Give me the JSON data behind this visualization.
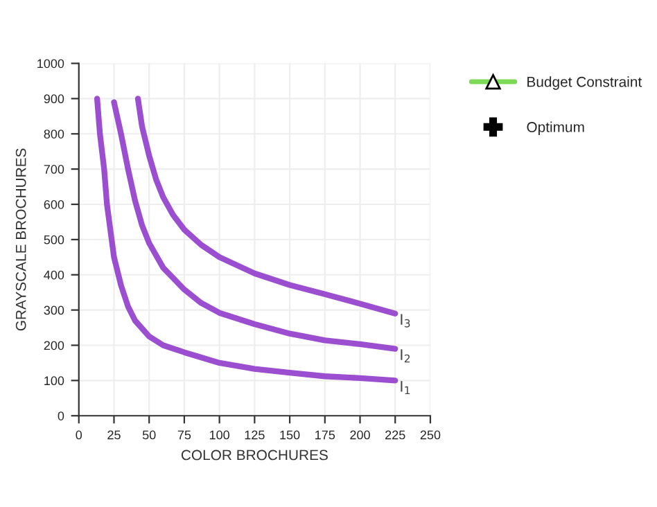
{
  "chart_data": {
    "type": "line",
    "xlabel": "COLOR BROCHURES",
    "ylabel": "GRAYSCALE BROCHURES",
    "xlim": [
      0,
      250
    ],
    "xticks": [
      0,
      25,
      50,
      75,
      100,
      125,
      150,
      175,
      200,
      225,
      250
    ],
    "ylim": [
      0,
      1000
    ],
    "yticks": [
      0,
      100,
      200,
      300,
      400,
      500,
      600,
      700,
      800,
      900,
      1000
    ],
    "grid": true,
    "legend": "right",
    "series": [
      {
        "name": "I$_{1}$",
        "color": "#9b4fd0",
        "marker": "none",
        "x": [
          13,
          15,
          18,
          20,
          25,
          30,
          35,
          40,
          50,
          60,
          75,
          100,
          125,
          150,
          175,
          200,
          225
        ],
        "values": [
          900,
          800,
          700,
          600,
          450,
          370,
          310,
          270,
          225,
          200,
          180,
          150,
          133,
          122,
          112,
          107,
          100
        ]
      },
      {
        "name": "I$_{2}$",
        "color": "#9b4fd0",
        "marker": "none",
        "x": [
          25,
          30,
          35,
          40,
          45,
          50,
          60,
          75,
          87,
          100,
          125,
          150,
          175,
          200,
          225
        ],
        "values": [
          890,
          800,
          700,
          610,
          540,
          490,
          420,
          358,
          320,
          292,
          260,
          233,
          214,
          203,
          190
        ]
      },
      {
        "name": "I$_{3}$",
        "color": "#9b4fd0",
        "marker": "none",
        "x": [
          42,
          45,
          50,
          55,
          60,
          67,
          75,
          87,
          100,
          125,
          150,
          175,
          200,
          225
        ],
        "values": [
          900,
          820,
          738,
          670,
          620,
          570,
          528,
          485,
          450,
          404,
          371,
          345,
          318,
          290
        ]
      },
      {
        "name": "Budget Constraint",
        "color": "#7ed957",
        "marker": "triangle"
      },
      {
        "name": "Optimum",
        "color": "#000000",
        "marker": "cross"
      }
    ]
  }
}
